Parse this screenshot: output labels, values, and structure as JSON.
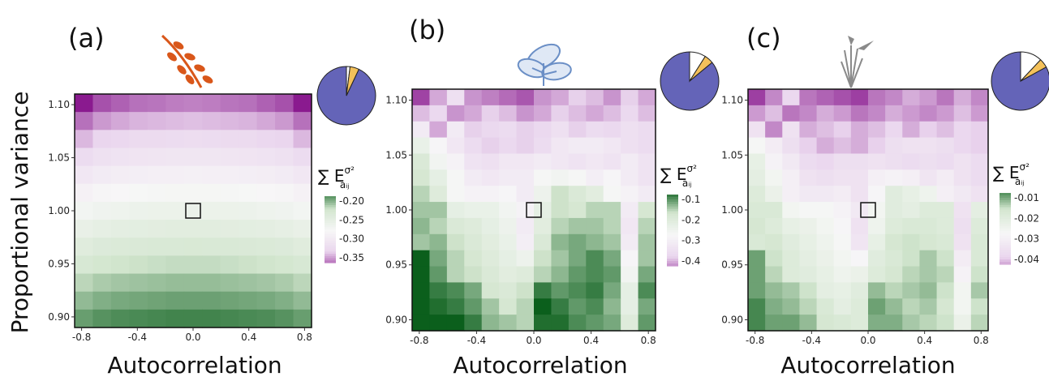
{
  "figure": {
    "ylabel": "Proportional variance",
    "xlabel": "Autocorrelation",
    "legend_title": "∑ E",
    "legend_sup": "σ²",
    "legend_sub": "aᵢⱼ"
  },
  "colors": {
    "purple_dark": "#8a1a8f",
    "purple_light": "#ead6ee",
    "white": "#f7f7f7",
    "green_light": "#d3e6cf",
    "green_dark": "#0b5f1c",
    "pie_main": "#6464b8",
    "pie_white": "#ffffff",
    "pie_yellow": "#f4c15a",
    "plant_a": "#d9571a",
    "plant_b": "#6b8fc6",
    "plant_c": "#8a8a8a"
  },
  "icons": [
    "seed-branch-icon",
    "leafy-plant-icon",
    "grass-flower-icon"
  ],
  "chart_data": [
    {
      "type": "heatmap",
      "panel_label": "(a)",
      "xlabel": "Autocorrelation",
      "ylabel": "Proportional variance",
      "xlim": [
        -0.85,
        0.85
      ],
      "ylim": [
        0.89,
        1.11
      ],
      "xticks": [
        "-0.8",
        "-0.4",
        "0.0",
        "0.4",
        "0.8"
      ],
      "xtick_values": [
        -0.8,
        -0.4,
        0.0,
        0.4,
        0.8
      ],
      "yticks": [
        "0.90",
        "0.95",
        "1.00",
        "1.05",
        "1.10"
      ],
      "ytick_values": [
        0.9,
        0.95,
        1.0,
        1.05,
        1.1
      ],
      "legend_ticks": [
        "-0.20",
        "-0.25",
        "-0.30",
        "-0.35"
      ],
      "legend_values": [
        -0.2,
        -0.25,
        -0.3,
        -0.35
      ],
      "color_range": [
        -0.37,
        -0.18
      ],
      "pie": [
        0.93,
        0.02,
        0.05
      ],
      "marker": {
        "x": 0.0,
        "y": 1.0
      },
      "grid_rows": [
        [
          -0.372,
          -0.356,
          -0.352,
          -0.348,
          -0.347,
          -0.345,
          -0.344,
          -0.345,
          -0.347,
          -0.348,
          -0.352,
          -0.356,
          -0.372
        ],
        [
          -0.348,
          -0.338,
          -0.334,
          -0.331,
          -0.33,
          -0.329,
          -0.328,
          -0.329,
          -0.33,
          -0.331,
          -0.334,
          -0.338,
          -0.348
        ],
        [
          -0.33,
          -0.322,
          -0.319,
          -0.316,
          -0.315,
          -0.314,
          -0.313,
          -0.314,
          -0.315,
          -0.316,
          -0.319,
          -0.322,
          -0.33
        ],
        [
          -0.314,
          -0.307,
          -0.304,
          -0.302,
          -0.301,
          -0.3,
          -0.299,
          -0.3,
          -0.301,
          -0.302,
          -0.304,
          -0.307,
          -0.314
        ],
        [
          -0.298,
          -0.292,
          -0.29,
          -0.288,
          -0.287,
          -0.286,
          -0.285,
          -0.286,
          -0.287,
          -0.288,
          -0.29,
          -0.292,
          -0.298
        ],
        [
          -0.283,
          -0.278,
          -0.276,
          -0.274,
          -0.273,
          -0.272,
          -0.272,
          -0.272,
          -0.273,
          -0.274,
          -0.276,
          -0.278,
          -0.283
        ],
        [
          -0.269,
          -0.265,
          -0.263,
          -0.261,
          -0.26,
          -0.26,
          -0.259,
          -0.26,
          -0.26,
          -0.261,
          -0.263,
          -0.265,
          -0.269
        ],
        [
          -0.256,
          -0.252,
          -0.25,
          -0.249,
          -0.248,
          -0.247,
          -0.247,
          -0.247,
          -0.248,
          -0.249,
          -0.25,
          -0.252,
          -0.256
        ],
        [
          -0.244,
          -0.24,
          -0.238,
          -0.237,
          -0.236,
          -0.236,
          -0.235,
          -0.236,
          -0.236,
          -0.237,
          -0.238,
          -0.24,
          -0.244
        ],
        [
          -0.233,
          -0.229,
          -0.227,
          -0.226,
          -0.225,
          -0.224,
          -0.224,
          -0.224,
          -0.225,
          -0.226,
          -0.227,
          -0.229,
          -0.233
        ],
        [
          -0.222,
          -0.218,
          -0.216,
          -0.215,
          -0.214,
          -0.213,
          -0.213,
          -0.213,
          -0.214,
          -0.215,
          -0.216,
          -0.218,
          -0.222
        ],
        [
          -0.212,
          -0.208,
          -0.206,
          -0.205,
          -0.204,
          -0.203,
          -0.203,
          -0.203,
          -0.204,
          -0.205,
          -0.206,
          -0.208,
          -0.212
        ],
        [
          -0.202,
          -0.198,
          -0.196,
          -0.195,
          -0.194,
          -0.193,
          -0.193,
          -0.193,
          -0.194,
          -0.195,
          -0.196,
          -0.198,
          -0.202
        ]
      ]
    },
    {
      "type": "heatmap",
      "panel_label": "(b)",
      "xlabel": "Autocorrelation",
      "xlim": [
        -0.85,
        0.85
      ],
      "ylim": [
        0.89,
        1.11
      ],
      "xticks": [
        "-0.8",
        "-0.4",
        "0.0",
        "0.4",
        "0.8"
      ],
      "xtick_values": [
        -0.8,
        -0.4,
        0.0,
        0.4,
        0.8
      ],
      "yticks": [
        "0.90",
        "0.95",
        "1.00",
        "1.05",
        "1.10"
      ],
      "ytick_values": [
        0.9,
        0.95,
        1.0,
        1.05,
        1.1
      ],
      "legend_ticks": [
        "-0.1",
        "-0.2",
        "-0.3",
        "-0.4"
      ],
      "legend_values": [
        -0.1,
        -0.2,
        -0.3,
        -0.4
      ],
      "color_range": [
        -0.45,
        -0.08
      ],
      "pie": [
        0.86,
        0.09,
        0.05
      ],
      "marker": {
        "x": 0.0,
        "y": 1.0
      },
      "grid_rows": [
        [
          -0.43,
          -0.38,
          -0.33,
          -0.39,
          -0.4,
          -0.41,
          -0.42,
          -0.39,
          -0.38,
          -0.36,
          -0.37,
          -0.39,
          -0.36,
          -0.38
        ],
        [
          -0.37,
          -0.35,
          -0.39,
          -0.38,
          -0.36,
          -0.37,
          -0.39,
          -0.38,
          -0.36,
          -0.37,
          -0.38,
          -0.37,
          -0.35,
          -0.37
        ],
        [
          -0.3,
          -0.38,
          -0.3,
          -0.36,
          -0.35,
          -0.34,
          -0.36,
          -0.35,
          -0.33,
          -0.36,
          -0.34,
          -0.35,
          -0.33,
          -0.34
        ],
        [
          -0.23,
          -0.27,
          -0.31,
          -0.34,
          -0.36,
          -0.35,
          -0.36,
          -0.34,
          -0.31,
          -0.3,
          -0.3,
          -0.31,
          -0.33,
          -0.34
        ],
        [
          -0.19,
          -0.25,
          -0.28,
          -0.32,
          -0.33,
          -0.31,
          -0.31,
          -0.3,
          -0.31,
          -0.32,
          -0.31,
          -0.32,
          -0.3,
          -0.32
        ],
        [
          -0.18,
          -0.22,
          -0.26,
          -0.3,
          -0.31,
          -0.3,
          -0.3,
          -0.26,
          -0.25,
          -0.26,
          -0.29,
          -0.27,
          -0.3,
          -0.32
        ],
        [
          -0.16,
          -0.2,
          -0.26,
          -0.28,
          -0.28,
          -0.27,
          -0.3,
          -0.24,
          -0.17,
          -0.19,
          -0.21,
          -0.26,
          -0.28,
          -0.3
        ],
        [
          -0.15,
          -0.15,
          -0.22,
          -0.23,
          -0.23,
          -0.25,
          -0.28,
          -0.22,
          -0.17,
          -0.18,
          -0.16,
          -0.16,
          -0.3,
          -0.18
        ],
        [
          -0.14,
          -0.16,
          -0.19,
          -0.2,
          -0.22,
          -0.24,
          -0.3,
          -0.21,
          -0.16,
          -0.15,
          -0.15,
          -0.16,
          -0.31,
          -0.16
        ],
        [
          -0.15,
          -0.14,
          -0.17,
          -0.19,
          -0.21,
          -0.23,
          -0.29,
          -0.19,
          -0.14,
          -0.13,
          -0.14,
          -0.15,
          -0.3,
          -0.15
        ],
        [
          -0.08,
          -0.13,
          -0.16,
          -0.18,
          -0.2,
          -0.22,
          -0.24,
          -0.17,
          -0.15,
          -0.13,
          -0.11,
          -0.13,
          -0.27,
          -0.15
        ],
        [
          -0.08,
          -0.12,
          -0.16,
          -0.17,
          -0.19,
          -0.21,
          -0.2,
          -0.16,
          -0.14,
          -0.12,
          -0.11,
          -0.12,
          -0.25,
          -0.13
        ],
        [
          -0.08,
          -0.1,
          -0.11,
          -0.13,
          -0.18,
          -0.19,
          -0.17,
          -0.1,
          -0.12,
          -0.11,
          -0.1,
          -0.13,
          -0.22,
          -0.11
        ],
        [
          -0.06,
          -0.09,
          -0.1,
          -0.12,
          -0.15,
          -0.18,
          -0.16,
          -0.08,
          -0.1,
          -0.12,
          -0.11,
          -0.14,
          -0.22,
          -0.13
        ],
        [
          -0.06,
          -0.08,
          -0.08,
          -0.1,
          -0.14,
          -0.15,
          -0.16,
          -0.09,
          -0.09,
          -0.11,
          -0.12,
          -0.13,
          -0.2,
          -0.12
        ]
      ]
    },
    {
      "type": "heatmap",
      "panel_label": "(c)",
      "xlabel": "Autocorrelation",
      "xlim": [
        -0.85,
        0.85
      ],
      "ylim": [
        0.89,
        1.11
      ],
      "xticks": [
        "-0.8",
        "-0.4",
        "0.0",
        "0.4",
        "0.8"
      ],
      "xtick_values": [
        -0.8,
        -0.4,
        0.0,
        0.4,
        0.8
      ],
      "yticks": [
        "0.90",
        "0.95",
        "1.00",
        "1.05",
        "1.10"
      ],
      "ytick_values": [
        0.9,
        0.95,
        1.0,
        1.05,
        1.1
      ],
      "legend_ticks": [
        "-0.01",
        "-0.02",
        "-0.03",
        "-0.04"
      ],
      "legend_values": [
        -0.01,
        -0.02,
        -0.03,
        -0.04
      ],
      "color_range": [
        -0.047,
        -0.006
      ],
      "pie": [
        0.83,
        0.12,
        0.05
      ],
      "marker": {
        "x": 0.0,
        "y": 1.0
      },
      "grid_rows": [
        [
          -0.045,
          -0.041,
          -0.036,
          -0.042,
          -0.043,
          -0.044,
          -0.045,
          -0.042,
          -0.041,
          -0.039,
          -0.04,
          -0.042,
          -0.039,
          -0.041
        ],
        [
          -0.04,
          -0.038,
          -0.042,
          -0.041,
          -0.039,
          -0.04,
          -0.042,
          -0.041,
          -0.039,
          -0.04,
          -0.041,
          -0.04,
          -0.038,
          -0.04
        ],
        [
          -0.033,
          -0.041,
          -0.033,
          -0.039,
          -0.038,
          -0.037,
          -0.039,
          -0.038,
          -0.036,
          -0.039,
          -0.037,
          -0.038,
          -0.036,
          -0.037
        ],
        [
          -0.026,
          -0.03,
          -0.034,
          -0.037,
          -0.039,
          -0.038,
          -0.039,
          -0.037,
          -0.034,
          -0.033,
          -0.033,
          -0.034,
          -0.036,
          -0.037
        ],
        [
          -0.022,
          -0.028,
          -0.031,
          -0.035,
          -0.036,
          -0.034,
          -0.034,
          -0.033,
          -0.034,
          -0.035,
          -0.034,
          -0.035,
          -0.033,
          -0.035
        ],
        [
          -0.021,
          -0.025,
          -0.029,
          -0.033,
          -0.034,
          -0.033,
          -0.033,
          -0.029,
          -0.028,
          -0.029,
          -0.032,
          -0.03,
          -0.033,
          -0.035
        ],
        [
          -0.019,
          -0.023,
          -0.029,
          -0.031,
          -0.031,
          -0.03,
          -0.033,
          -0.027,
          -0.02,
          -0.022,
          -0.024,
          -0.029,
          -0.031,
          -0.033
        ],
        [
          -0.018,
          -0.018,
          -0.025,
          -0.026,
          -0.026,
          -0.028,
          -0.031,
          -0.025,
          -0.02,
          -0.021,
          -0.019,
          -0.019,
          -0.033,
          -0.021
        ],
        [
          -0.017,
          -0.019,
          -0.022,
          -0.023,
          -0.025,
          -0.027,
          -0.033,
          -0.024,
          -0.019,
          -0.018,
          -0.018,
          -0.019,
          -0.034,
          -0.019
        ],
        [
          -0.018,
          -0.017,
          -0.02,
          -0.022,
          -0.024,
          -0.026,
          -0.032,
          -0.022,
          -0.017,
          -0.016,
          -0.017,
          -0.018,
          -0.033,
          -0.018
        ],
        [
          -0.011,
          -0.016,
          -0.019,
          -0.021,
          -0.023,
          -0.025,
          -0.027,
          -0.02,
          -0.018,
          -0.016,
          -0.014,
          -0.016,
          -0.03,
          -0.018
        ],
        [
          -0.011,
          -0.015,
          -0.019,
          -0.02,
          -0.022,
          -0.024,
          -0.023,
          -0.019,
          -0.017,
          -0.015,
          -0.014,
          -0.015,
          -0.028,
          -0.016
        ],
        [
          -0.011,
          -0.013,
          -0.014,
          -0.016,
          -0.021,
          -0.022,
          -0.02,
          -0.013,
          -0.015,
          -0.014,
          -0.013,
          -0.016,
          -0.025,
          -0.014
        ],
        [
          -0.009,
          -0.012,
          -0.013,
          -0.015,
          -0.018,
          -0.021,
          -0.019,
          -0.011,
          -0.013,
          -0.015,
          -0.014,
          -0.017,
          -0.025,
          -0.016
        ],
        [
          -0.009,
          -0.011,
          -0.011,
          -0.013,
          -0.017,
          -0.018,
          -0.019,
          -0.012,
          -0.012,
          -0.014,
          -0.015,
          -0.016,
          -0.023,
          -0.015
        ]
      ]
    }
  ]
}
